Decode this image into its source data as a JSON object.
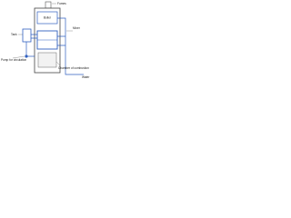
{
  "labels": {
    "fumes": "Fumes",
    "boiler": "Boiler",
    "tank": "Tank",
    "mixer": "Mixer",
    "pump": "Pump for circulation",
    "chamber": "Chamber of combustion",
    "water": "Water"
  }
}
